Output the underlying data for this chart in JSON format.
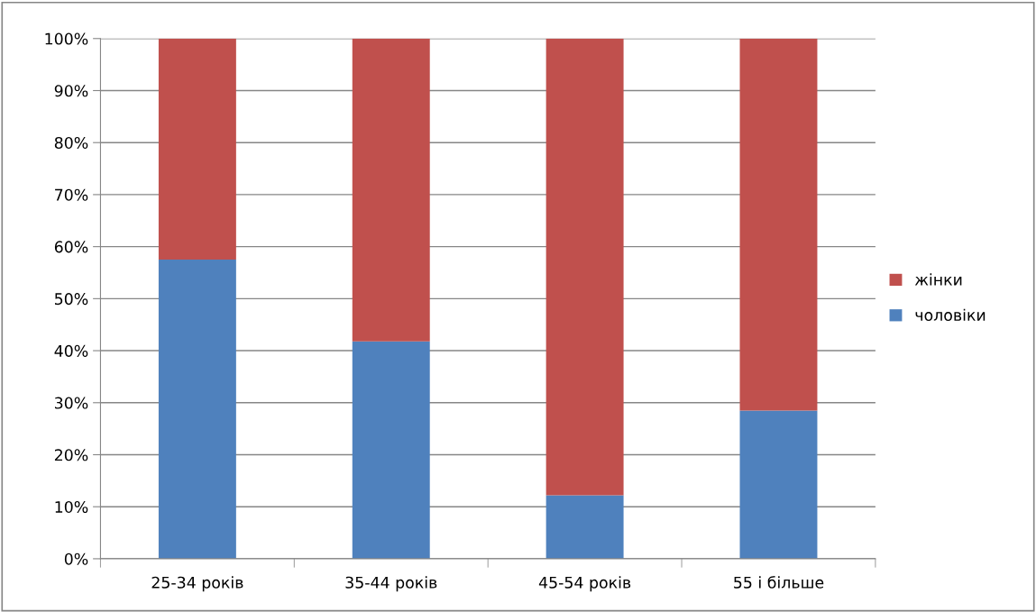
{
  "chart_data": {
    "type": "bar",
    "stacked": true,
    "categories": [
      "25-34 років",
      "35-44 років",
      "45-54 років",
      "55 і більше"
    ],
    "series": [
      {
        "name": "чоловіки",
        "color": "#4f81bd",
        "values": [
          57.5,
          41.8,
          12.2,
          28.5
        ]
      },
      {
        "name": "жінки",
        "color": "#c0504d",
        "values": [
          42.5,
          58.2,
          87.8,
          71.5
        ]
      }
    ],
    "ylim": [
      0,
      100
    ],
    "yticks": [
      {
        "value": 0,
        "label": "0%"
      },
      {
        "value": 10,
        "label": "10%"
      },
      {
        "value": 20,
        "label": "20%"
      },
      {
        "value": 30,
        "label": "30%"
      },
      {
        "value": 40,
        "label": "40%"
      },
      {
        "value": 50,
        "label": "50%"
      },
      {
        "value": 60,
        "label": "60%"
      },
      {
        "value": 70,
        "label": "70%"
      },
      {
        "value": 80,
        "label": "80%"
      },
      {
        "value": 90,
        "label": "90%"
      },
      {
        "value": 100,
        "label": "100%"
      }
    ],
    "grid": "y",
    "legend": "right"
  }
}
